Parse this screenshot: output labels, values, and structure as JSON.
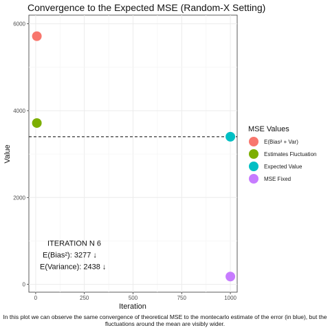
{
  "chart_data": {
    "type": "scatter",
    "title": "Convergence to the Expected MSE (Random-X Setting)",
    "xlabel": "Iteration",
    "ylabel": "Value",
    "xlim": [
      -35,
      1035
    ],
    "ylim": [
      -180,
      6200
    ],
    "x_ticks": [
      0,
      250,
      500,
      750,
      1000
    ],
    "y_ticks": [
      0,
      2000,
      4000,
      6000
    ],
    "grid": true,
    "legend": {
      "title": "MSE Values",
      "position": "right",
      "entries": [
        {
          "label": "E(Bias² + Var)",
          "color": "#F8766D"
        },
        {
          "label": "Estimates Fluctuation",
          "color": "#7CAE00"
        },
        {
          "label": "Expected Value",
          "color": "#00BFC4"
        },
        {
          "label": "MSE Fixed",
          "color": "#C77CFF"
        }
      ]
    },
    "points": [
      {
        "series": "E(Bias² + Var)",
        "x": 6,
        "y": 5715,
        "color": "#F8766D"
      },
      {
        "series": "Estimates Fluctuation",
        "x": 6,
        "y": 3715,
        "color": "#7CAE00"
      },
      {
        "series": "Expected Value",
        "x": 1000,
        "y": 3400,
        "color": "#00BFC4"
      },
      {
        "series": "MSE Fixed",
        "x": 1000,
        "y": 180,
        "color": "#C77CFF"
      }
    ],
    "hline": {
      "y": 3400,
      "style": "dashed"
    },
    "annotations": [
      {
        "text": "ITERATION N   6",
        "x": 200,
        "y": 950
      },
      {
        "text": "E(Bias²):       3277 ↓",
        "x": 200,
        "y": 680
      },
      {
        "text": "E(Variance):    2438 ↓",
        "x": 200,
        "y": 410
      }
    ]
  },
  "caption": "In this plot we can observe the same convergence of theoretical MSE to the montecarlo estimate of the error (in blue), but the fluctuations around the mean are visibly wider."
}
